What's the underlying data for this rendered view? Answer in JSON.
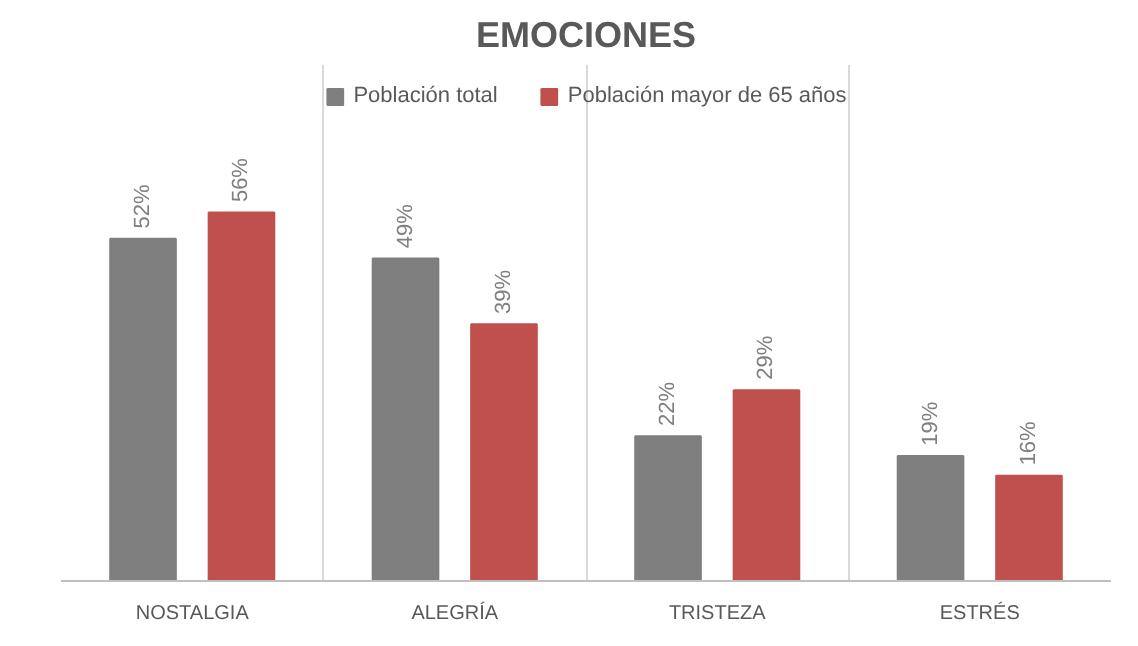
{
  "chart_data": {
    "type": "bar",
    "title": "EMOCIONES",
    "categories": [
      "NOSTALGIA",
      "ALEGRÍA",
      "TRISTEZA",
      "ESTRÉS"
    ],
    "series": [
      {
        "name": "Población total",
        "color": "#7f7f7f",
        "values": [
          52,
          49,
          22,
          19
        ],
        "value_labels": [
          "52%",
          "49%",
          "22%",
          "19%"
        ]
      },
      {
        "name": "Población mayor de 65 años",
        "color": "#c0504d",
        "values": [
          56,
          39,
          29,
          16
        ],
        "value_labels": [
          "56%",
          "39%",
          "29%",
          "16%"
        ]
      }
    ],
    "legend": "top",
    "grid": "x",
    "tick_labels": "x"
  }
}
